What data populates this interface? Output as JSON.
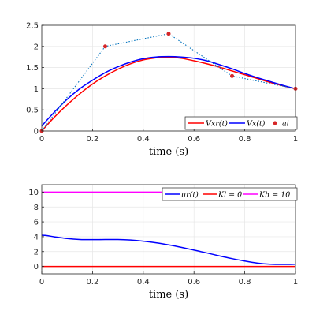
{
  "chart_data": [
    {
      "type": "line",
      "xlabel": "time (s)",
      "ylabel": "",
      "xlim": [
        0,
        1
      ],
      "ylim": [
        0,
        2.5
      ],
      "xticks": [
        "0",
        "0.2",
        "0.4",
        "0.6",
        "0.8",
        "1"
      ],
      "yticks": [
        "0",
        "0.5",
        "1",
        "1.5",
        "2",
        "2.5"
      ],
      "grid": true,
      "legend_position": "bottom-right",
      "series": [
        {
          "name": "V_xr(t)",
          "legend_label": "Vxr(t)",
          "color": "#ff0000",
          "style": "solid",
          "x": [
            0,
            0.05,
            0.1,
            0.15,
            0.2,
            0.25,
            0.3,
            0.35,
            0.4,
            0.45,
            0.5,
            0.55,
            0.6,
            0.65,
            0.7,
            0.75,
            0.8,
            0.85,
            0.9,
            0.95,
            1.0
          ],
          "y": [
            0.0,
            0.33,
            0.62,
            0.88,
            1.11,
            1.3,
            1.46,
            1.59,
            1.68,
            1.73,
            1.75,
            1.72,
            1.66,
            1.59,
            1.51,
            1.42,
            1.33,
            1.24,
            1.15,
            1.07,
            1.0
          ]
        },
        {
          "name": "V_x(t)",
          "legend_label": "Vx(t)",
          "color": "#0000ff",
          "style": "solid",
          "x": [
            0,
            0.05,
            0.1,
            0.15,
            0.2,
            0.25,
            0.3,
            0.35,
            0.4,
            0.45,
            0.5,
            0.55,
            0.6,
            0.65,
            0.7,
            0.75,
            0.8,
            0.85,
            0.9,
            0.95,
            1.0
          ],
          "y": [
            0.12,
            0.45,
            0.75,
            1.0,
            1.2,
            1.38,
            1.52,
            1.63,
            1.71,
            1.75,
            1.76,
            1.75,
            1.72,
            1.66,
            1.57,
            1.47,
            1.36,
            1.26,
            1.17,
            1.08,
            1.0
          ]
        },
        {
          "name": "a_i",
          "legend_label": "ai",
          "color": "#0072bd",
          "marker_color": "#d62728",
          "style": "dotted",
          "x": [
            0,
            0.25,
            0.5,
            0.75,
            1.0
          ],
          "y": [
            0.0,
            2.0,
            2.3,
            1.3,
            1.0
          ]
        }
      ]
    },
    {
      "type": "line",
      "xlabel": "time (s)",
      "ylabel": "",
      "xlim": [
        0,
        1
      ],
      "ylim": [
        -1,
        11
      ],
      "xticks": [
        "0",
        "0.2",
        "0.4",
        "0.6",
        "0.8",
        "1"
      ],
      "yticks": [
        "0",
        "2",
        "4",
        "6",
        "8",
        "10"
      ],
      "grid": true,
      "legend_position": "top-right",
      "series": [
        {
          "name": "u_r(t)",
          "legend_label": "ur(t)",
          "color": "#0000ff",
          "style": "solid",
          "x": [
            0,
            0.02,
            0.05,
            0.1,
            0.15,
            0.2,
            0.25,
            0.3,
            0.35,
            0.4,
            0.45,
            0.5,
            0.55,
            0.6,
            0.65,
            0.7,
            0.75,
            0.8,
            0.85,
            0.9,
            0.95,
            1.0
          ],
          "y": [
            4.2,
            4.15,
            3.98,
            3.75,
            3.62,
            3.6,
            3.62,
            3.62,
            3.55,
            3.4,
            3.18,
            2.9,
            2.57,
            2.2,
            1.82,
            1.42,
            1.05,
            0.72,
            0.45,
            0.3,
            0.27,
            0.3
          ]
        },
        {
          "name": "K_l = 0",
          "legend_label": "Kl = 0",
          "color": "#ff0000",
          "style": "solid",
          "x": [
            0,
            1
          ],
          "y": [
            0,
            0
          ]
        },
        {
          "name": "K_h = 10",
          "legend_label": "Kh = 10",
          "color": "#ff00ff",
          "style": "solid",
          "x": [
            0,
            1
          ],
          "y": [
            10,
            10
          ]
        }
      ]
    }
  ]
}
